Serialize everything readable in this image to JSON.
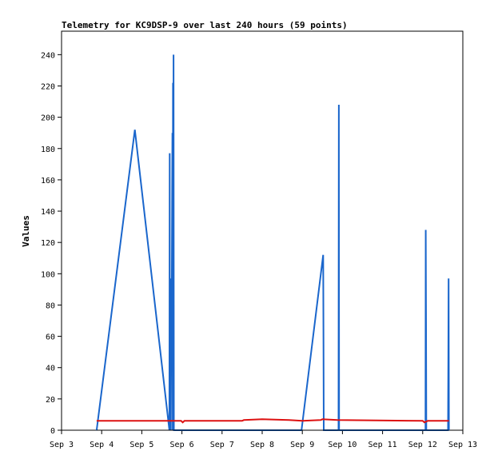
{
  "chart_data": {
    "type": "line",
    "title": "Telemetry for KC9DSP-9 over last 240 hours (59 points)",
    "xlabel": "",
    "ylabel": "Values",
    "xlim": [
      "Sep 3",
      "Sep 13"
    ],
    "ylim": [
      0,
      255
    ],
    "x_ticks": [
      "Sep 3",
      "Sep 4",
      "Sep 5",
      "Sep 6",
      "Sep 7",
      "Sep 8",
      "Sep 9",
      "Sep 10",
      "Sep 11",
      "Sep 12",
      "Sep 13"
    ],
    "y_ticks": [
      0,
      20,
      40,
      60,
      80,
      100,
      120,
      140,
      160,
      180,
      200,
      220,
      240
    ],
    "grid": false,
    "legend": "none",
    "series": [
      {
        "color": "#1a66cc",
        "points": [
          [
            "Sep 3 21:00",
            0
          ],
          [
            "Sep 4 19:50",
            192
          ],
          [
            "Sep 5 16:30",
            0
          ],
          [
            "Sep 5 16:40",
            177
          ],
          [
            "Sep 5 16:50",
            0
          ],
          [
            "Sep 5 17:10",
            97
          ],
          [
            "Sep 5 17:20",
            0
          ],
          [
            "Sep 5 17:40",
            85
          ],
          [
            "Sep 5 17:50",
            55
          ],
          [
            "Sep 5 18:10",
            155
          ],
          [
            "Sep 5 18:20",
            190
          ],
          [
            "Sep 5 18:30",
            0
          ],
          [
            "Sep 5 18:40",
            222
          ],
          [
            "Sep 5 18:50",
            0
          ],
          [
            "Sep 5 19:00",
            240
          ],
          [
            "Sep 5 19:10",
            0
          ],
          [
            "Sep 8 23:30",
            0
          ],
          [
            "Sep 9 12:30",
            112
          ],
          [
            "Sep 9 12:40",
            55
          ],
          [
            "Sep 9 12:50",
            0
          ],
          [
            "Sep 9 21:40",
            0
          ],
          [
            "Sep 9 21:50",
            208
          ],
          [
            "Sep 9 22:00",
            0
          ],
          [
            "Sep 12 01:40",
            0
          ],
          [
            "Sep 12 01:50",
            128
          ],
          [
            "Sep 12 02:00",
            64
          ],
          [
            "Sep 12 02:10",
            0
          ],
          [
            "Sep 12 15:10",
            0
          ],
          [
            "Sep 12 15:20",
            48
          ],
          [
            "Sep 12 15:30",
            97
          ],
          [
            "Sep 12 15:40",
            0
          ]
        ]
      },
      {
        "color": "#dd1111",
        "points": [
          [
            "Sep 3 21:00",
            6
          ],
          [
            "Sep 5 23:30",
            6
          ],
          [
            "Sep 6 00:30",
            5
          ],
          [
            "Sep 6 01:30",
            6
          ],
          [
            "Sep 7 12:00",
            6
          ],
          [
            "Sep 7 13:00",
            6.5
          ],
          [
            "Sep 8 00:00",
            7
          ],
          [
            "Sep 8 16:00",
            6.5
          ],
          [
            "Sep 9 00:00",
            6
          ],
          [
            "Sep 9 11:00",
            6.5
          ],
          [
            "Sep 9 12:00",
            7
          ],
          [
            "Sep 9 21:00",
            6.5
          ],
          [
            "Sep 12 00:00",
            6
          ],
          [
            "Sep 12 01:00",
            5
          ],
          [
            "Sep 12 03:00",
            6
          ],
          [
            "Sep 12 15:40",
            6
          ]
        ]
      },
      {
        "color": "#000000",
        "points": [
          [
            "Sep 3 21:00",
            0
          ],
          [
            "Sep 12 15:40",
            0
          ]
        ]
      }
    ]
  }
}
